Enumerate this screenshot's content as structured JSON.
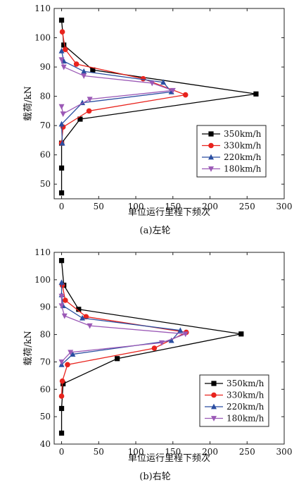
{
  "chart_data": [
    {
      "type": "line",
      "caption": "(a)左轮",
      "xlabel": "单位运行里程下频次",
      "ylabel": "载荷/kN",
      "xlim": [
        -10,
        300
      ],
      "ylim": [
        45,
        110
      ],
      "xticks": [
        0,
        50,
        100,
        150,
        200,
        250,
        300
      ],
      "yticks": [
        50,
        60,
        70,
        80,
        90,
        100,
        110
      ],
      "legend": "center-right",
      "series": [
        {
          "name": "350km/h",
          "color": "#000000",
          "marker": "square",
          "points": [
            [
              0,
              47
            ],
            [
              0,
              55.5
            ],
            [
              0,
              64
            ],
            [
              25,
              72.2
            ],
            [
              262,
              80.8
            ],
            [
              42,
              89
            ],
            [
              3,
              97.5
            ],
            [
              0,
              106
            ]
          ]
        },
        {
          "name": "330km/h",
          "color": "#e8231d",
          "marker": "circle",
          "points": [
            [
              0,
              64
            ],
            [
              2,
              69.5
            ],
            [
              37,
              75
            ],
            [
              167,
              80.5
            ],
            [
              110,
              86
            ],
            [
              20,
              91
            ],
            [
              5,
              96
            ],
            [
              1,
              102
            ]
          ]
        },
        {
          "name": "220km/h",
          "color": "#2a4ea1",
          "marker": "triangle-up",
          "points": [
            [
              1,
              64
            ],
            [
              0,
              70.5
            ],
            [
              28,
              77.8
            ],
            [
              148,
              81.5
            ],
            [
              137,
              84.8
            ],
            [
              30,
              88.5
            ],
            [
              3,
              92
            ],
            [
              0,
              95.5
            ]
          ]
        },
        {
          "name": "180km/h",
          "color": "#9b59b6",
          "marker": "triangle-down",
          "points": [
            [
              0,
              76.5
            ],
            [
              2,
              74
            ],
            [
              38,
              79
            ],
            [
              150,
              82
            ],
            [
              122,
              84.5
            ],
            [
              30,
              87
            ],
            [
              3,
              90
            ],
            [
              0,
              92.5
            ]
          ]
        }
      ]
    },
    {
      "type": "line",
      "caption": "(b)右轮",
      "xlabel": "单位运行里程下频次",
      "ylabel": "载荷/kN",
      "xlim": [
        -10,
        300
      ],
      "ylim": [
        40,
        110
      ],
      "xticks": [
        0,
        50,
        100,
        150,
        200,
        250,
        300
      ],
      "yticks": [
        40,
        50,
        60,
        70,
        80,
        90,
        100,
        110
      ],
      "legend": "bottom-right",
      "series": [
        {
          "name": "350km/h",
          "color": "#000000",
          "marker": "square",
          "points": [
            [
              0,
              44
            ],
            [
              0,
              53
            ],
            [
              2,
              62
            ],
            [
              75,
              71.2
            ],
            [
              242,
              80.2
            ],
            [
              23,
              89.2
            ],
            [
              3,
              98
            ],
            [
              0,
              107
            ]
          ]
        },
        {
          "name": "330km/h",
          "color": "#e8231d",
          "marker": "circle",
          "points": [
            [
              0,
              57.5
            ],
            [
              1,
              63
            ],
            [
              8,
              69
            ],
            [
              125,
              75
            ],
            [
              168,
              80.8
            ],
            [
              33,
              86.5
            ],
            [
              5,
              92.5
            ],
            [
              1,
              98
            ]
          ]
        },
        {
          "name": "220km/h",
          "color": "#2a4ea1",
          "marker": "triangle-up",
          "points": [
            [
              0,
              69
            ],
            [
              15,
              72.8
            ],
            [
              148,
              77.8
            ],
            [
              160,
              81.5
            ],
            [
              28,
              86
            ],
            [
              2,
              90.5
            ],
            [
              0,
              94.5
            ],
            [
              0,
              99
            ]
          ]
        },
        {
          "name": "180km/h",
          "color": "#9b59b6",
          "marker": "triangle-down",
          "points": [
            [
              0,
              70
            ],
            [
              12,
              73.5
            ],
            [
              135,
              77
            ],
            [
              167,
              80.2
            ],
            [
              38,
              83.2
            ],
            [
              4,
              86.8
            ],
            [
              0,
              90.5
            ],
            [
              0,
              94
            ]
          ]
        }
      ]
    }
  ]
}
